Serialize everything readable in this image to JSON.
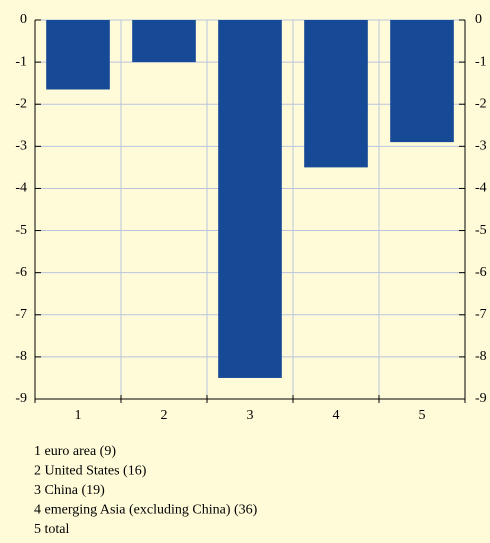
{
  "chart_data": {
    "type": "bar",
    "categories": [
      "1",
      "2",
      "3",
      "4",
      "5"
    ],
    "values": [
      -1.65,
      -1.0,
      -8.5,
      -3.5,
      -2.9
    ],
    "color": "#174a96",
    "ylim": [
      -9,
      0
    ],
    "yticks": [
      0,
      -1,
      -2,
      -3,
      -4,
      -5,
      -6,
      -7,
      -8,
      -9
    ],
    "grid": true,
    "notes": [
      "1 euro area (9)",
      "2 United States (16)",
      "3 China (19)",
      "4 emerging Asia (excluding China) (36)",
      "5 total"
    ]
  }
}
